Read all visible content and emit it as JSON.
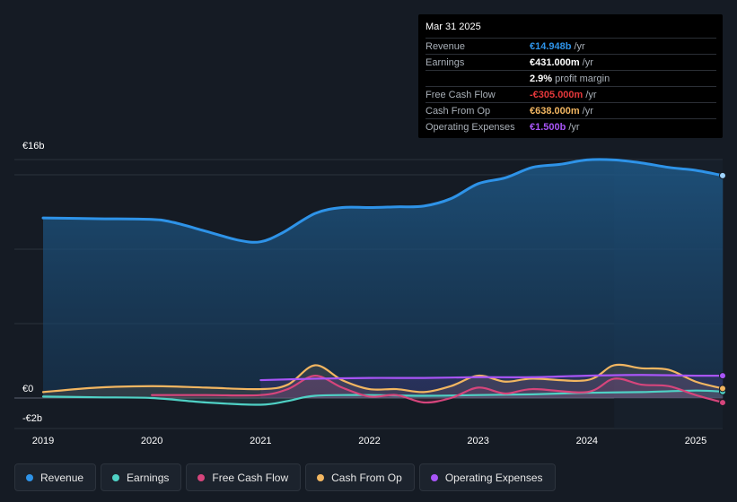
{
  "tooltip": {
    "date": "Mar 31 2025",
    "rows": [
      {
        "label": "Revenue",
        "value": "€14.948b",
        "unit": "/yr",
        "color": "#2e93e8"
      },
      {
        "label": "Earnings",
        "value": "€431.000m",
        "unit": "/yr",
        "color": "#ffffff"
      },
      {
        "label": "",
        "value": "2.9%",
        "unit": "profit margin",
        "color": "#ffffff"
      },
      {
        "label": "Free Cash Flow",
        "value": "-€305.000m",
        "unit": "/yr",
        "color": "#e5383b"
      },
      {
        "label": "Cash From Op",
        "value": "€638.000m",
        "unit": "/yr",
        "color": "#f2b661"
      },
      {
        "label": "Operating Expenses",
        "value": "€1.500b",
        "unit": "/yr",
        "color": "#a855f7"
      }
    ]
  },
  "legend": [
    {
      "label": "Revenue",
      "color": "#2e93e8"
    },
    {
      "label": "Earnings",
      "color": "#4fd1c5"
    },
    {
      "label": "Free Cash Flow",
      "color": "#d6457c"
    },
    {
      "label": "Cash From Op",
      "color": "#f2b661"
    },
    {
      "label": "Operating Expenses",
      "color": "#a855f7"
    }
  ],
  "chart_data": {
    "type": "line",
    "y_tick_labels": [
      "€16b",
      "€0",
      "-€2b"
    ],
    "x_tick_labels": [
      "2019",
      "2020",
      "2021",
      "2022",
      "2023",
      "2024",
      "2025"
    ],
    "ylim": [
      -2,
      16
    ],
    "xlim": [
      2018.75,
      2025.25
    ],
    "highlight_start": 2024.25,
    "grid": true,
    "series": [
      {
        "name": "Revenue",
        "color": "#2e93e8",
        "area": true,
        "x": [
          2019.0,
          2019.5,
          2020.0,
          2020.2,
          2020.5,
          2020.8,
          2021.0,
          2021.2,
          2021.5,
          2021.75,
          2022.0,
          2022.25,
          2022.5,
          2022.75,
          2023.0,
          2023.25,
          2023.5,
          2023.75,
          2024.0,
          2024.25,
          2024.5,
          2024.75,
          2025.0,
          2025.25
        ],
        "y": [
          12.1,
          12.05,
          12.0,
          11.8,
          11.2,
          10.6,
          10.5,
          11.1,
          12.4,
          12.8,
          12.8,
          12.85,
          12.9,
          13.4,
          14.4,
          14.8,
          15.5,
          15.7,
          16.0,
          16.0,
          15.8,
          15.5,
          15.3,
          14.948
        ]
      },
      {
        "name": "Earnings",
        "color": "#4fd1c5",
        "x": [
          2019.0,
          2019.5,
          2020.0,
          2020.5,
          2021.0,
          2021.25,
          2021.5,
          2022.0,
          2022.5,
          2023.0,
          2023.5,
          2024.0,
          2024.5,
          2025.0,
          2025.25
        ],
        "y": [
          0.1,
          0.05,
          0.0,
          -0.3,
          -0.45,
          -0.2,
          0.15,
          0.2,
          0.15,
          0.2,
          0.25,
          0.35,
          0.4,
          0.5,
          0.431
        ]
      },
      {
        "name": "Free Cash Flow",
        "color": "#d6457c",
        "x": [
          2020.0,
          2020.5,
          2021.0,
          2021.25,
          2021.5,
          2021.75,
          2022.0,
          2022.25,
          2022.5,
          2022.75,
          2023.0,
          2023.25,
          2023.5,
          2024.0,
          2024.25,
          2024.5,
          2024.75,
          2025.0,
          2025.25
        ],
        "y": [
          0.2,
          0.2,
          0.2,
          0.6,
          1.5,
          0.7,
          0.1,
          0.2,
          -0.3,
          0.0,
          0.7,
          0.3,
          0.6,
          0.4,
          1.3,
          0.9,
          0.8,
          0.2,
          -0.305
        ]
      },
      {
        "name": "Cash From Op",
        "color": "#f2b661",
        "x": [
          2019.0,
          2019.5,
          2020.0,
          2020.5,
          2021.0,
          2021.25,
          2021.5,
          2021.75,
          2022.0,
          2022.25,
          2022.5,
          2022.75,
          2023.0,
          2023.25,
          2023.5,
          2024.0,
          2024.25,
          2024.5,
          2024.75,
          2025.0,
          2025.25
        ],
        "y": [
          0.4,
          0.7,
          0.8,
          0.7,
          0.6,
          0.9,
          2.2,
          1.2,
          0.6,
          0.6,
          0.4,
          0.8,
          1.5,
          1.1,
          1.3,
          1.2,
          2.2,
          2.0,
          1.9,
          1.1,
          0.638
        ]
      },
      {
        "name": "Operating Expenses",
        "color": "#a855f7",
        "x": [
          2021.0,
          2021.5,
          2022.0,
          2022.5,
          2023.0,
          2023.5,
          2024.0,
          2024.5,
          2025.0,
          2025.25
        ],
        "y": [
          1.2,
          1.3,
          1.35,
          1.35,
          1.4,
          1.4,
          1.5,
          1.55,
          1.5,
          1.5
        ]
      }
    ]
  }
}
